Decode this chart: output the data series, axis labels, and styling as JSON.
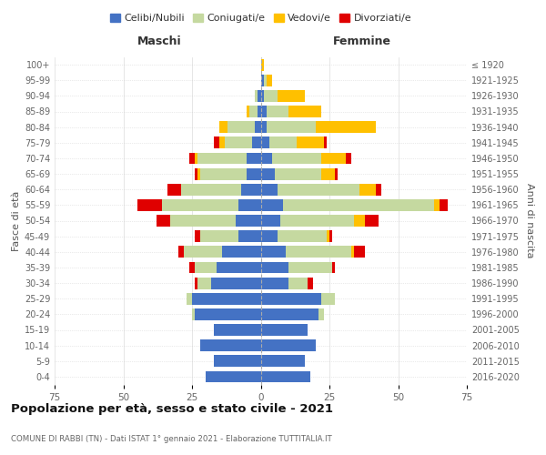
{
  "age_groups": [
    "0-4",
    "5-9",
    "10-14",
    "15-19",
    "20-24",
    "25-29",
    "30-34",
    "35-39",
    "40-44",
    "45-49",
    "50-54",
    "55-59",
    "60-64",
    "65-69",
    "70-74",
    "75-79",
    "80-84",
    "85-89",
    "90-94",
    "95-99",
    "100+"
  ],
  "birth_years": [
    "2016-2020",
    "2011-2015",
    "2006-2010",
    "2001-2005",
    "1996-2000",
    "1991-1995",
    "1986-1990",
    "1981-1985",
    "1976-1980",
    "1971-1975",
    "1966-1970",
    "1961-1965",
    "1956-1960",
    "1951-1955",
    "1946-1950",
    "1941-1945",
    "1936-1940",
    "1931-1935",
    "1926-1930",
    "1921-1925",
    "≤ 1920"
  ],
  "males": {
    "celibe": [
      20,
      17,
      22,
      17,
      24,
      25,
      18,
      16,
      14,
      8,
      9,
      8,
      7,
      5,
      5,
      3,
      2,
      1,
      1,
      0,
      0
    ],
    "coniugato": [
      0,
      0,
      0,
      0,
      1,
      2,
      5,
      8,
      14,
      14,
      24,
      28,
      22,
      17,
      18,
      10,
      10,
      3,
      1,
      0,
      0
    ],
    "vedovo": [
      0,
      0,
      0,
      0,
      0,
      0,
      0,
      0,
      0,
      0,
      0,
      0,
      0,
      1,
      1,
      2,
      3,
      1,
      0,
      0,
      0
    ],
    "divorziato": [
      0,
      0,
      0,
      0,
      0,
      0,
      1,
      2,
      2,
      2,
      5,
      9,
      5,
      1,
      2,
      2,
      0,
      0,
      0,
      0,
      0
    ]
  },
  "females": {
    "nubile": [
      18,
      16,
      20,
      17,
      21,
      22,
      10,
      10,
      9,
      6,
      7,
      8,
      6,
      5,
      4,
      3,
      2,
      2,
      1,
      1,
      0
    ],
    "coniugata": [
      0,
      0,
      0,
      0,
      2,
      5,
      7,
      16,
      24,
      18,
      27,
      55,
      30,
      17,
      18,
      10,
      18,
      8,
      5,
      1,
      0
    ],
    "vedova": [
      0,
      0,
      0,
      0,
      0,
      0,
      0,
      0,
      1,
      1,
      4,
      2,
      6,
      5,
      9,
      10,
      22,
      12,
      10,
      2,
      1
    ],
    "divorziata": [
      0,
      0,
      0,
      0,
      0,
      0,
      2,
      1,
      4,
      1,
      5,
      3,
      2,
      1,
      2,
      1,
      0,
      0,
      0,
      0,
      0
    ]
  },
  "colors": {
    "celibe": "#4472c4",
    "coniugato": "#c5d9a0",
    "vedovo": "#ffc000",
    "divorziato": "#e00000"
  },
  "xlim": 75,
  "title": "Popolazione per età, sesso e stato civile - 2021",
  "subtitle": "COMUNE DI RABBI (TN) - Dati ISTAT 1° gennaio 2021 - Elaborazione TUTTITALIA.IT",
  "ylabel_left": "Fasce di età",
  "ylabel_right": "Anni di nascita",
  "xlabel_left": "Maschi",
  "xlabel_right": "Femmine",
  "legend_labels": [
    "Celibi/Nubili",
    "Coniugati/e",
    "Vedovi/e",
    "Divorziati/e"
  ],
  "bg_color": "#ffffff",
  "grid_color": "#cccccc"
}
